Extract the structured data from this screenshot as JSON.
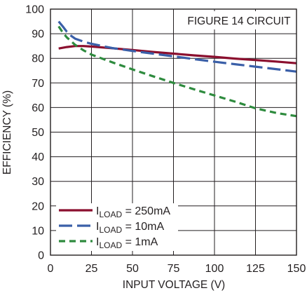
{
  "chart_data": {
    "type": "line",
    "title": "",
    "xlabel": "INPUT VOLTAGE (V)",
    "ylabel": "EFFICIENCY (%)",
    "xlim": [
      0,
      150
    ],
    "ylim": [
      0,
      100
    ],
    "xticks": [
      0,
      25,
      50,
      75,
      100,
      125,
      150
    ],
    "yticks": [
      0,
      10,
      20,
      30,
      40,
      50,
      60,
      70,
      80,
      90,
      100
    ],
    "grid": true,
    "annotation": "FIGURE 14 CIRCUIT",
    "legend_position": "bottom-left",
    "series": [
      {
        "label_main": "I",
        "label_sub": "LOAD",
        "label_rest": " = 250mA",
        "color": "#8b0f2e",
        "dash": "solid",
        "x": [
          5,
          10,
          15,
          20,
          25,
          37.5,
          50,
          62.5,
          75,
          87.5,
          100,
          112.5,
          125,
          137.5,
          150
        ],
        "y": [
          84,
          84.6,
          85,
          85,
          84.8,
          84.1,
          83.4,
          82.6,
          81.9,
          81.2,
          80.6,
          79.9,
          79.3,
          78.7,
          78
        ]
      },
      {
        "label_main": "I",
        "label_sub": "LOAD",
        "label_rest": " = 10mA",
        "color": "#3a5fa8",
        "dash": "long",
        "x": [
          5,
          7.5,
          10,
          12.5,
          15,
          20,
          25,
          37.5,
          50,
          62.5,
          75,
          87.5,
          100,
          112.5,
          125,
          137.5,
          150
        ],
        "y": [
          95,
          93,
          90.8,
          89.2,
          88,
          86.8,
          85.9,
          84.2,
          83,
          81.9,
          80.8,
          79.7,
          78.6,
          77.6,
          76.6,
          75.6,
          74.6
        ]
      },
      {
        "label_main": "I",
        "label_sub": "LOAD",
        "label_rest": " = 1mA",
        "color": "#2e8b3e",
        "dash": "short",
        "x": [
          5,
          7.5,
          10,
          12.5,
          15,
          20,
          25,
          37.5,
          50,
          62.5,
          75,
          87.5,
          100,
          112.5,
          125,
          137.5,
          150
        ],
        "y": [
          93,
          90.5,
          88.5,
          87,
          85.5,
          83.3,
          81.5,
          78.4,
          75.5,
          72.7,
          70,
          67.4,
          64.9,
          62.4,
          59.7,
          57.8,
          56.5
        ]
      }
    ]
  }
}
